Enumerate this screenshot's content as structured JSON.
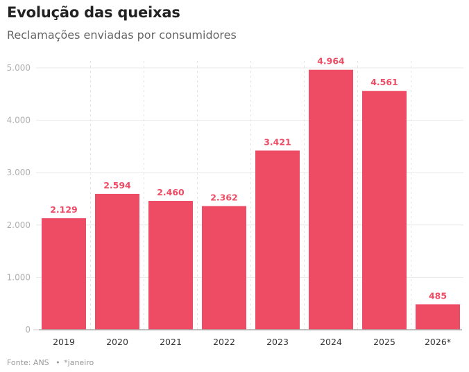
{
  "header": {
    "title": "Evolução das queixas",
    "subtitle": "Reclamações enviadas por consumidores"
  },
  "footer": {
    "source": "Fonte: ANS",
    "separator": "•",
    "note": "*janeiro"
  },
  "colors": {
    "bar": "#ee4c65",
    "label": "#ee4c65",
    "grid": "#e8e8e8",
    "axis": "#aaaaaa"
  },
  "chart_data": {
    "type": "bar",
    "title": "Evolução das queixas",
    "subtitle": "Reclamações enviadas por consumidores",
    "xlabel": "",
    "ylabel": "",
    "categories": [
      "2019",
      "2020",
      "2021",
      "2022",
      "2023",
      "2024",
      "2025",
      "2026*"
    ],
    "values": [
      2129,
      2594,
      2460,
      2362,
      3421,
      4964,
      4561,
      485
    ],
    "value_labels": [
      "2.129",
      "2.594",
      "2.460",
      "2.362",
      "3.421",
      "4.964",
      "4.561",
      "485"
    ],
    "ylim": [
      0,
      5000
    ],
    "yticks": [
      0,
      1000,
      2000,
      3000,
      4000,
      5000
    ],
    "ytick_labels": [
      "0",
      "1.000",
      "2.000",
      "3.000",
      "4.000",
      "5.000"
    ],
    "grid": true,
    "legend": "none",
    "source": "Fonte: ANS",
    "note": "*janeiro"
  }
}
